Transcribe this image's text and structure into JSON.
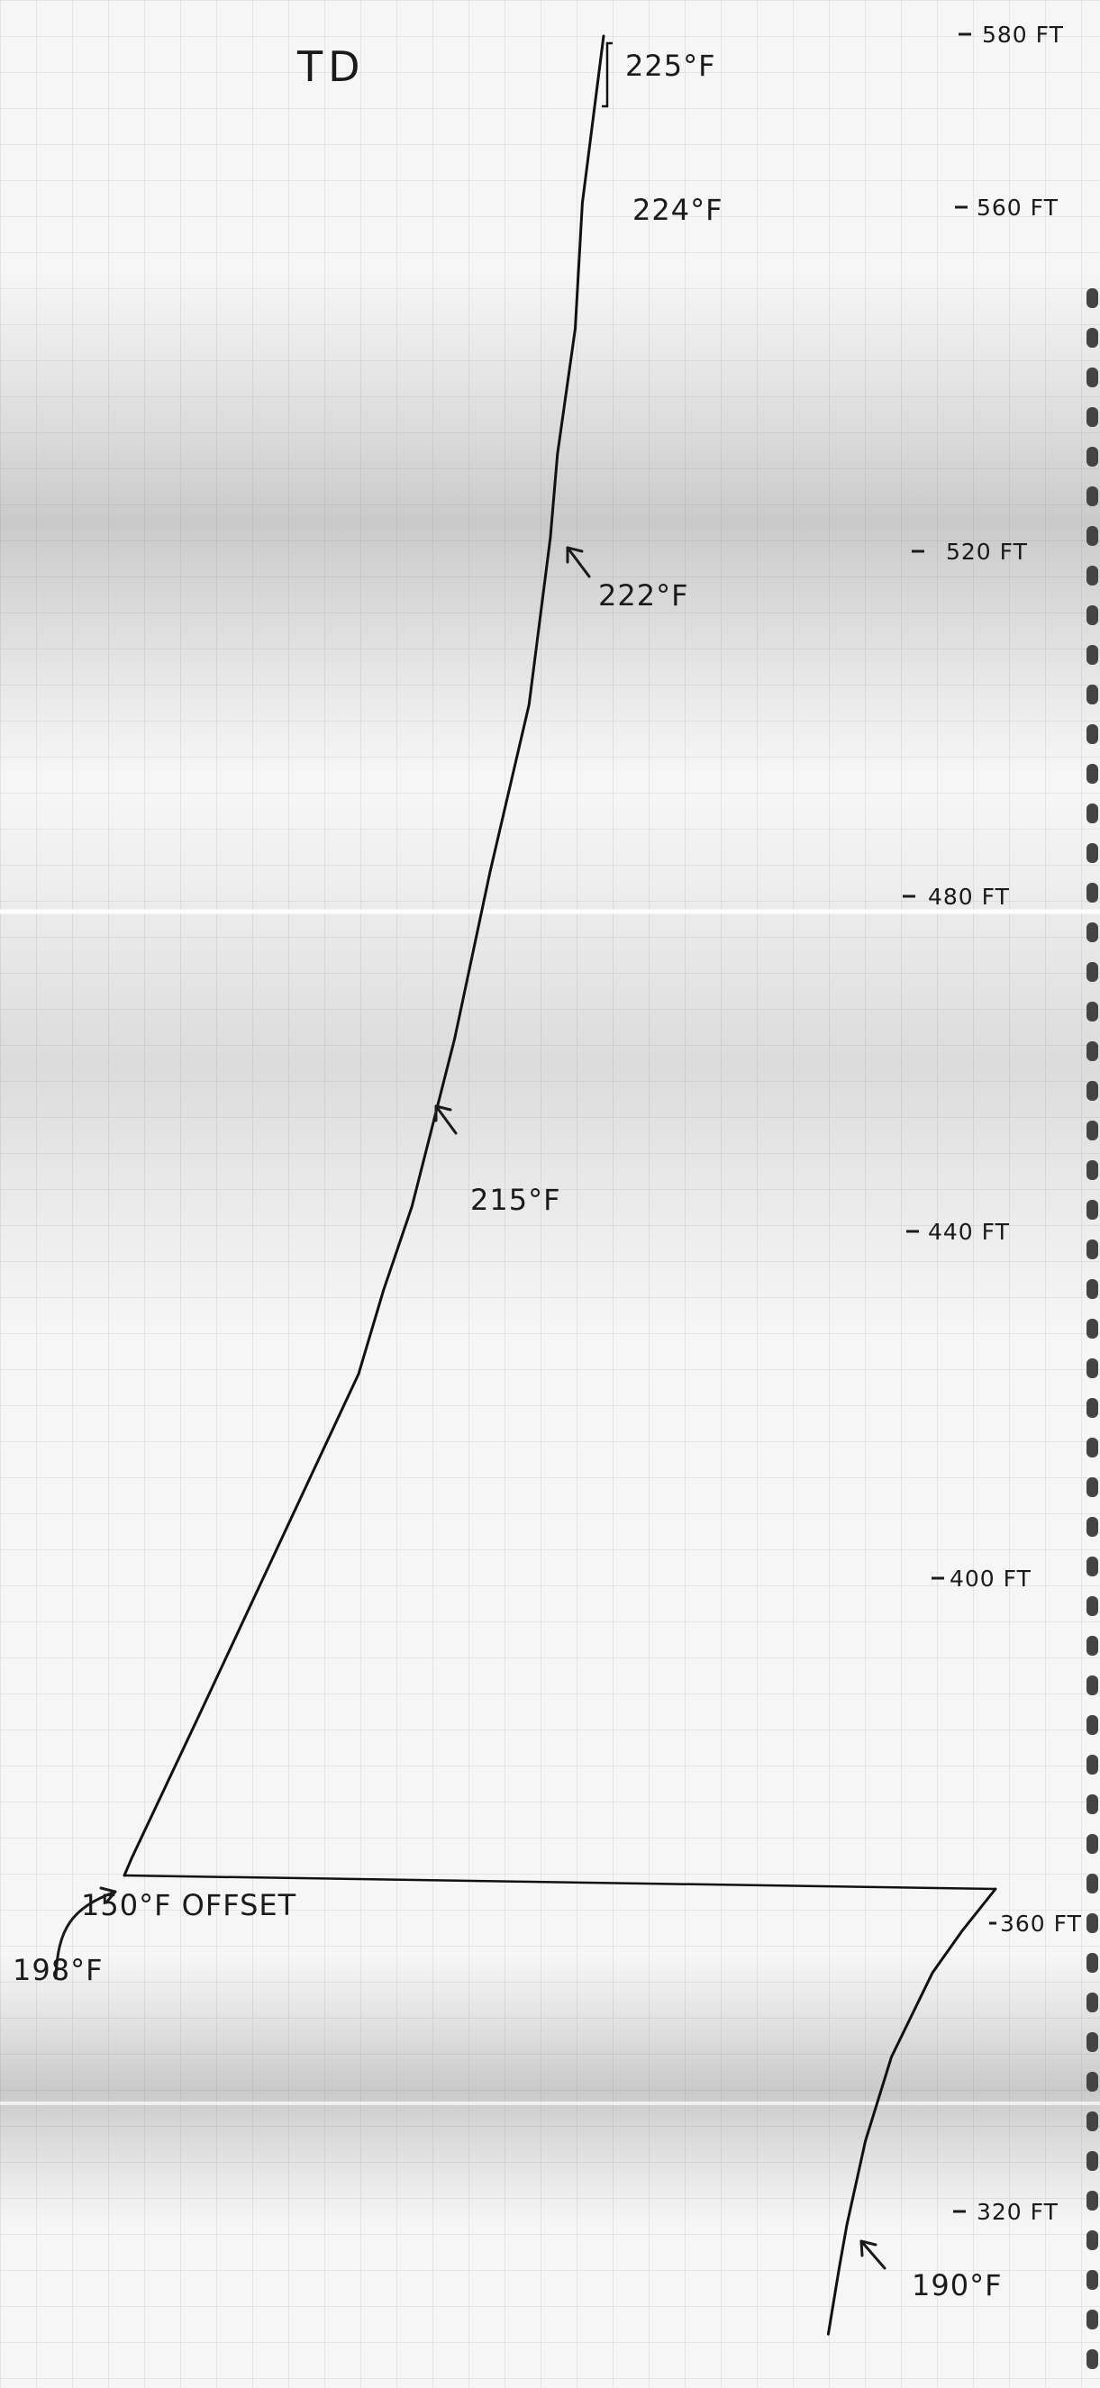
{
  "chart_data": {
    "type": "line",
    "title": "TD",
    "xlabel": "",
    "ylabel": "",
    "depth_ticks": [
      {
        "depth_ft": 580,
        "label": "580 FT"
      },
      {
        "depth_ft": 560,
        "label": "560 FT"
      },
      {
        "depth_ft": 520,
        "label": "520 FT"
      },
      {
        "depth_ft": 480,
        "label": "480 FT"
      },
      {
        "depth_ft": 440,
        "label": "440 FT"
      },
      {
        "depth_ft": 400,
        "label": "400 FT"
      },
      {
        "depth_ft": 360,
        "label": "360 FT"
      },
      {
        "depth_ft": 320,
        "label": "320 FT"
      }
    ],
    "annotations": {
      "td_temp": "225°F",
      "temp_224": "224°F",
      "temp_222": "222°F",
      "temp_215": "215°F",
      "offset_note": "150°F OFFSET",
      "temp_198": "198°F",
      "temp_190": "190°F"
    },
    "series": [
      {
        "segment": "lower",
        "depth_ft": [
          307,
          315,
          320,
          330,
          340,
          350,
          355,
          360
        ],
        "temp_f": [
          189.0,
          189.6,
          190.0,
          191.0,
          192.4,
          194.6,
          196.2,
          198.0
        ]
      },
      {
        "segment": "upper",
        "depth_ft": [
          360,
          362,
          380,
          400,
          420,
          430,
          440,
          460,
          480,
          500,
          520,
          530,
          545,
          560,
          570,
          580
        ],
        "temp_f": [
          198.0,
          198.4,
          202.4,
          206.8,
          211.2,
          212.6,
          214.2,
          216.6,
          218.6,
          220.8,
          222.0,
          222.4,
          223.4,
          223.8,
          224.4,
          225.0
        ]
      }
    ]
  }
}
